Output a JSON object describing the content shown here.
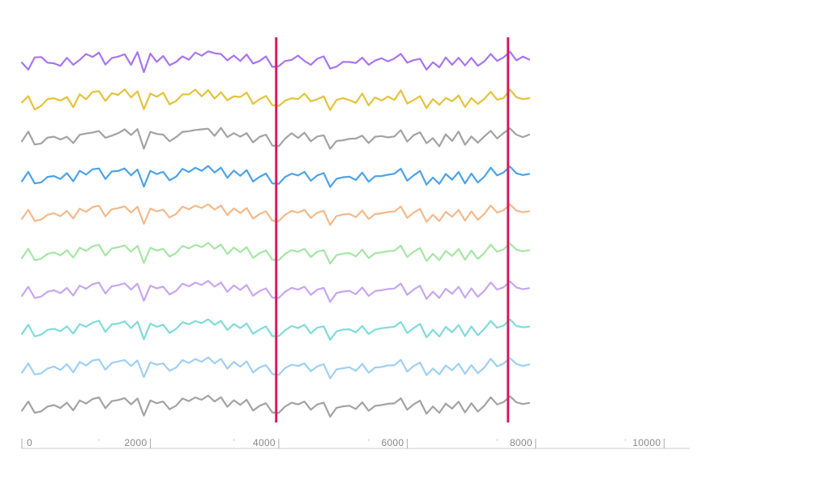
{
  "chart_data": {
    "type": "line",
    "title": "",
    "xlabel": "",
    "ylabel": "",
    "xlim": [
      0,
      10400
    ],
    "x_ticks": [
      {
        "value": 0,
        "label": "0"
      },
      {
        "value": 2000,
        "label": "2000"
      },
      {
        "value": 4000,
        "label": "4000"
      },
      {
        "value": 6000,
        "label": "6000"
      },
      {
        "value": 8000,
        "label": "8000"
      },
      {
        "value": 10000,
        "label": "10000"
      }
    ],
    "x_minor_ticks": [
      1200,
      3300,
      5400,
      7400,
      9400
    ],
    "x_step": 100,
    "markers": [
      {
        "x": 3960,
        "color": "#d81b60"
      },
      {
        "x": 7570,
        "color": "#d81b60"
      }
    ],
    "pattern": [
      0.28,
      0.72,
      0.18,
      0.25,
      0.48,
      0.55,
      0.41,
      0.66,
      0.3,
      0.77,
      0.62,
      0.84,
      0.91,
      0.4,
      0.74,
      0.79,
      0.88,
      0.58,
      0.86,
      0.05,
      0.77,
      0.64,
      0.72,
      0.35,
      0.52,
      0.86,
      0.74,
      0.91,
      0.8,
      1.0,
      0.72,
      0.92,
      0.47,
      0.78,
      0.56,
      0.8,
      0.29,
      0.51,
      0.64,
      0.2,
      0.18,
      0.48,
      0.66,
      0.58,
      0.72,
      0.33,
      0.58,
      0.66,
      0.0,
      0.42,
      0.49,
      0.52,
      0.36,
      0.68,
      0.28,
      0.51,
      0.55,
      0.61,
      0.63,
      0.87,
      0.33,
      0.58,
      0.76,
      0.14,
      0.48,
      0.18,
      0.62,
      0.38,
      0.71,
      0.2,
      0.64,
      0.24,
      0.52,
      0.92,
      0.58,
      0.69,
      0.97,
      0.68,
      0.6,
      0.65
    ],
    "series": [
      {
        "color": "#a875f0",
        "values": [
          0.45,
          0.12,
          0.7,
          0.72,
          0.45,
          0.42,
          0.3,
          0.68,
          0.35,
          0.58,
          0.86,
          0.72,
          0.93,
          0.36,
          0.67,
          0.74,
          0.85,
          0.35,
          0.95,
          0.0,
          0.88,
          0.49,
          0.77,
          0.33,
          0.48,
          0.75,
          0.59,
          0.93,
          0.78,
          0.99,
          0.9,
          0.86,
          0.56,
          0.79,
          0.53,
          0.84,
          0.41,
          0.53,
          0.75,
          0.25,
          0.28,
          0.53,
          0.58,
          0.79,
          0.53,
          0.35,
          0.64,
          0.75,
          0.17,
          0.26,
          0.49,
          0.48,
          0.44,
          0.69,
          0.35,
          0.55,
          0.66,
          0.51,
          0.65,
          0.87,
          0.45,
          0.57,
          0.63,
          0.12,
          0.47,
          0.23,
          0.7,
          0.35,
          0.68,
          0.32,
          0.68,
          0.3,
          0.51,
          0.86,
          0.54,
          0.7,
          0.97,
          0.56,
          0.74,
          0.6
        ]
      },
      {
        "color": "#e4c339",
        "values": [
          0.38,
          0.68,
          0.04,
          0.22,
          0.54,
          0.58,
          0.46,
          0.64,
          0.15,
          0.77,
          0.53,
          0.88,
          0.91,
          0.45,
          0.82,
          0.74,
          1.0,
          0.62,
          0.9,
          0.06,
          0.8,
          0.65,
          0.84,
          0.29,
          0.45,
          0.76,
          0.76,
          0.99,
          0.67,
          0.96,
          0.56,
          0.86,
          0.48,
          0.67,
          0.64,
          0.85,
          0.31,
          0.54,
          0.69,
          0.25,
          0.21,
          0.46,
          0.58,
          0.54,
          0.8,
          0.43,
          0.53,
          0.67,
          0.02,
          0.5,
          0.58,
          0.49,
          0.36,
          0.8,
          0.24,
          0.62,
          0.47,
          0.66,
          0.5,
          0.95,
          0.33,
          0.49,
          0.68,
          0.11,
          0.54,
          0.27,
          0.6,
          0.44,
          0.71,
          0.16,
          0.59,
          0.31,
          0.55,
          0.88,
          0.51,
          0.58,
          0.99,
          0.63,
          0.54,
          0.58
        ]
      },
      {
        "color": "#a3a3a3",
        "values": [
          0.35,
          0.81,
          0.2,
          0.25,
          0.53,
          0.57,
          0.44,
          0.57,
          0.27,
          0.66,
          0.72,
          0.77,
          0.84,
          0.52,
          0.62,
          0.74,
          0.92,
          0.65,
          0.93,
          0.0,
          0.8,
          0.7,
          0.67,
          0.35,
          0.55,
          0.8,
          0.83,
          0.89,
          0.92,
          0.95,
          0.61,
          0.99,
          0.55,
          0.74,
          0.57,
          0.74,
          0.3,
          0.56,
          0.67,
          0.15,
          0.12,
          0.48,
          0.74,
          0.51,
          0.76,
          0.35,
          0.58,
          0.64,
          0.0,
          0.37,
          0.4,
          0.47,
          0.48,
          0.62,
          0.27,
          0.57,
          0.6,
          0.54,
          0.58,
          0.88,
          0.34,
          0.64,
          0.78,
          0.26,
          0.5,
          0.11,
          0.68,
          0.37,
          0.81,
          0.19,
          0.58,
          0.29,
          0.58,
          0.85,
          0.49,
          0.74,
          0.96,
          0.67,
          0.55,
          0.67
        ]
      },
      {
        "color": "#4da3e8",
        "values": [
          0.27,
          0.72,
          0.17,
          0.22,
          0.48,
          0.52,
          0.38,
          0.66,
          0.27,
          0.77,
          0.59,
          0.84,
          0.88,
          0.38,
          0.74,
          0.76,
          0.88,
          0.55,
          0.83,
          0.02,
          0.77,
          0.61,
          0.72,
          0.32,
          0.49,
          0.86,
          0.71,
          0.91,
          0.77,
          1.0,
          0.69,
          0.92,
          0.44,
          0.78,
          0.53,
          0.8,
          0.26,
          0.48,
          0.64,
          0.17,
          0.15,
          0.48,
          0.63,
          0.55,
          0.72,
          0.3,
          0.55,
          0.66,
          0.0,
          0.39,
          0.46,
          0.49,
          0.33,
          0.68,
          0.25,
          0.51,
          0.52,
          0.58,
          0.63,
          0.87,
          0.3,
          0.55,
          0.76,
          0.11,
          0.45,
          0.15,
          0.62,
          0.35,
          0.71,
          0.17,
          0.64,
          0.21,
          0.49,
          0.92,
          0.55,
          0.69,
          0.97,
          0.65,
          0.57,
          0.62
        ]
      },
      {
        "color": "#f5b98b",
        "values": [
          0.3,
          0.74,
          0.2,
          0.27,
          0.5,
          0.57,
          0.43,
          0.68,
          0.32,
          0.79,
          0.64,
          0.86,
          0.93,
          0.42,
          0.76,
          0.81,
          0.9,
          0.6,
          0.88,
          0.07,
          0.79,
          0.66,
          0.74,
          0.37,
          0.54,
          0.88,
          0.76,
          0.93,
          0.82,
          1.0,
          0.74,
          0.94,
          0.49,
          0.8,
          0.58,
          0.82,
          0.31,
          0.53,
          0.66,
          0.22,
          0.2,
          0.5,
          0.68,
          0.6,
          0.74,
          0.35,
          0.6,
          0.68,
          0.02,
          0.44,
          0.51,
          0.54,
          0.38,
          0.7,
          0.3,
          0.53,
          0.57,
          0.63,
          0.65,
          0.89,
          0.35,
          0.6,
          0.78,
          0.16,
          0.5,
          0.2,
          0.64,
          0.4,
          0.73,
          0.22,
          0.66,
          0.26,
          0.54,
          0.94,
          0.6,
          0.71,
          0.99,
          0.7,
          0.62,
          0.67
        ]
      },
      {
        "color": "#a5e6a5",
        "values": [
          0.26,
          0.7,
          0.16,
          0.23,
          0.46,
          0.53,
          0.39,
          0.64,
          0.28,
          0.75,
          0.6,
          0.82,
          0.89,
          0.38,
          0.72,
          0.77,
          0.86,
          0.56,
          0.84,
          0.03,
          0.75,
          0.62,
          0.7,
          0.33,
          0.5,
          0.84,
          0.72,
          0.89,
          0.78,
          0.98,
          0.7,
          0.9,
          0.45,
          0.76,
          0.54,
          0.78,
          0.27,
          0.49,
          0.62,
          0.18,
          0.16,
          0.46,
          0.64,
          0.56,
          0.7,
          0.31,
          0.56,
          0.64,
          0.0,
          0.4,
          0.47,
          0.5,
          0.34,
          0.66,
          0.26,
          0.49,
          0.53,
          0.59,
          0.61,
          0.85,
          0.31,
          0.56,
          0.74,
          0.12,
          0.46,
          0.16,
          0.6,
          0.36,
          0.69,
          0.18,
          0.62,
          0.22,
          0.5,
          0.9,
          0.56,
          0.67,
          0.95,
          0.66,
          0.58,
          0.63
        ]
      },
      {
        "color": "#c8a6f0",
        "values": [
          0.28,
          0.72,
          0.18,
          0.25,
          0.48,
          0.55,
          0.41,
          0.66,
          0.3,
          0.77,
          0.62,
          0.84,
          0.91,
          0.4,
          0.74,
          0.79,
          0.88,
          0.58,
          0.86,
          0.05,
          0.77,
          0.64,
          0.72,
          0.35,
          0.52,
          0.86,
          0.74,
          0.91,
          0.8,
          1.0,
          0.72,
          0.92,
          0.47,
          0.78,
          0.56,
          0.8,
          0.29,
          0.51,
          0.64,
          0.2,
          0.18,
          0.48,
          0.66,
          0.58,
          0.72,
          0.33,
          0.58,
          0.66,
          0.0,
          0.42,
          0.49,
          0.52,
          0.36,
          0.68,
          0.28,
          0.51,
          0.55,
          0.61,
          0.63,
          0.87,
          0.33,
          0.58,
          0.76,
          0.14,
          0.48,
          0.18,
          0.62,
          0.38,
          0.71,
          0.2,
          0.64,
          0.24,
          0.52,
          0.92,
          0.58,
          0.69,
          0.97,
          0.68,
          0.6,
          0.65
        ]
      },
      {
        "color": "#7fdcd9",
        "values": [
          0.29,
          0.73,
          0.17,
          0.26,
          0.49,
          0.54,
          0.42,
          0.65,
          0.31,
          0.76,
          0.63,
          0.83,
          0.92,
          0.39,
          0.75,
          0.78,
          0.89,
          0.57,
          0.87,
          0.04,
          0.78,
          0.63,
          0.73,
          0.34,
          0.53,
          0.85,
          0.75,
          0.9,
          0.81,
          0.99,
          0.73,
          0.91,
          0.48,
          0.77,
          0.57,
          0.79,
          0.3,
          0.5,
          0.65,
          0.19,
          0.19,
          0.47,
          0.67,
          0.57,
          0.73,
          0.32,
          0.59,
          0.65,
          0.01,
          0.41,
          0.5,
          0.51,
          0.37,
          0.67,
          0.29,
          0.5,
          0.56,
          0.6,
          0.64,
          0.86,
          0.34,
          0.57,
          0.77,
          0.13,
          0.49,
          0.17,
          0.63,
          0.37,
          0.72,
          0.19,
          0.65,
          0.23,
          0.53,
          0.91,
          0.59,
          0.68,
          0.98,
          0.67,
          0.61,
          0.64
        ]
      },
      {
        "color": "#9fd0f2",
        "values": [
          0.27,
          0.71,
          0.19,
          0.24,
          0.47,
          0.56,
          0.4,
          0.67,
          0.29,
          0.78,
          0.61,
          0.85,
          0.9,
          0.41,
          0.73,
          0.8,
          0.87,
          0.59,
          0.85,
          0.06,
          0.76,
          0.65,
          0.71,
          0.36,
          0.51,
          0.87,
          0.73,
          0.92,
          0.79,
          1.0,
          0.71,
          0.93,
          0.46,
          0.79,
          0.55,
          0.81,
          0.28,
          0.52,
          0.63,
          0.21,
          0.17,
          0.49,
          0.65,
          0.59,
          0.71,
          0.34,
          0.57,
          0.67,
          0.0,
          0.43,
          0.48,
          0.53,
          0.35,
          0.69,
          0.27,
          0.52,
          0.54,
          0.62,
          0.62,
          0.88,
          0.32,
          0.59,
          0.75,
          0.15,
          0.47,
          0.19,
          0.61,
          0.39,
          0.7,
          0.21,
          0.63,
          0.25,
          0.51,
          0.93,
          0.57,
          0.7,
          0.96,
          0.69,
          0.59,
          0.66
        ]
      },
      {
        "color": "#a3a3a3",
        "values": [
          0.28,
          0.72,
          0.18,
          0.25,
          0.48,
          0.55,
          0.41,
          0.66,
          0.3,
          0.77,
          0.62,
          0.84,
          0.91,
          0.4,
          0.74,
          0.79,
          0.88,
          0.58,
          0.86,
          0.05,
          0.77,
          0.64,
          0.72,
          0.35,
          0.52,
          0.86,
          0.74,
          0.91,
          0.8,
          1.0,
          0.72,
          0.92,
          0.47,
          0.78,
          0.56,
          0.8,
          0.29,
          0.51,
          0.64,
          0.2,
          0.18,
          0.48,
          0.66,
          0.58,
          0.72,
          0.33,
          0.58,
          0.66,
          0.0,
          0.42,
          0.49,
          0.52,
          0.36,
          0.68,
          0.28,
          0.51,
          0.55,
          0.61,
          0.63,
          0.87,
          0.33,
          0.58,
          0.76,
          0.14,
          0.48,
          0.18,
          0.62,
          0.38,
          0.71,
          0.2,
          0.64,
          0.24,
          0.52,
          0.92,
          0.58,
          0.69,
          0.97,
          0.68,
          0.6,
          0.65
        ]
      }
    ]
  }
}
